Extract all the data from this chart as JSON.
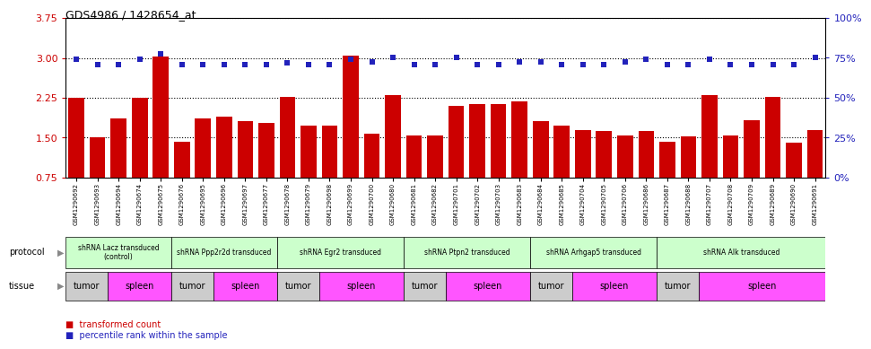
{
  "title": "GDS4986 / 1428654_at",
  "samples": [
    "GSM1290692",
    "GSM1290693",
    "GSM1290694",
    "GSM1290674",
    "GSM1290675",
    "GSM1290676",
    "GSM1290695",
    "GSM1290696",
    "GSM1290697",
    "GSM1290677",
    "GSM1290678",
    "GSM1290679",
    "GSM1290698",
    "GSM1290699",
    "GSM1290700",
    "GSM1290680",
    "GSM1290681",
    "GSM1290682",
    "GSM1290701",
    "GSM1290702",
    "GSM1290703",
    "GSM1290683",
    "GSM1290684",
    "GSM1290685",
    "GSM1290704",
    "GSM1290705",
    "GSM1290706",
    "GSM1290686",
    "GSM1290687",
    "GSM1290688",
    "GSM1290707",
    "GSM1290708",
    "GSM1290709",
    "GSM1290689",
    "GSM1290690",
    "GSM1290691"
  ],
  "bar_values": [
    2.25,
    1.5,
    1.87,
    2.25,
    3.02,
    1.43,
    1.87,
    1.9,
    1.82,
    1.78,
    2.27,
    1.72,
    1.72,
    3.04,
    1.57,
    2.3,
    1.55,
    1.55,
    2.1,
    2.13,
    2.13,
    2.18,
    1.82,
    1.72,
    1.65,
    1.62,
    1.55,
    1.62,
    1.43,
    1.52,
    2.3,
    1.55,
    1.83,
    2.26,
    1.4,
    1.65
  ],
  "blue_values": [
    2.97,
    2.87,
    2.87,
    2.97,
    3.08,
    2.87,
    2.87,
    2.87,
    2.87,
    2.87,
    2.9,
    2.87,
    2.87,
    2.97,
    2.92,
    3.01,
    2.87,
    2.87,
    3.01,
    2.87,
    2.87,
    2.92,
    2.92,
    2.87,
    2.87,
    2.87,
    2.92,
    2.97,
    2.87,
    2.87,
    2.97,
    2.87,
    2.87,
    2.87,
    2.87,
    3.01
  ],
  "ylim_left": [
    0.75,
    3.75
  ],
  "yticks_left": [
    0.75,
    1.5,
    2.25,
    3.0,
    3.75
  ],
  "yticks_right": [
    0,
    25,
    50,
    75,
    100
  ],
  "bar_color": "#cc0000",
  "blue_color": "#2222bb",
  "plot_bg": "#ffffff",
  "protocols": [
    {
      "label": "shRNA Lacz transduced\n(control)",
      "start": 0,
      "end": 5,
      "color": "#ccffcc"
    },
    {
      "label": "shRNA Ppp2r2d transduced",
      "start": 5,
      "end": 10,
      "color": "#ccffcc"
    },
    {
      "label": "shRNA Egr2 transduced",
      "start": 10,
      "end": 16,
      "color": "#ccffcc"
    },
    {
      "label": "shRNA Ptpn2 transduced",
      "start": 16,
      "end": 22,
      "color": "#ccffcc"
    },
    {
      "label": "shRNA Arhgap5 transduced",
      "start": 22,
      "end": 28,
      "color": "#ccffcc"
    },
    {
      "label": "shRNA Alk transduced",
      "start": 28,
      "end": 36,
      "color": "#ccffcc"
    }
  ],
  "tissues": [
    {
      "label": "tumor",
      "start": 0,
      "end": 2,
      "color": "#cccccc"
    },
    {
      "label": "spleen",
      "start": 2,
      "end": 5,
      "color": "#ff55ff"
    },
    {
      "label": "tumor",
      "start": 5,
      "end": 7,
      "color": "#cccccc"
    },
    {
      "label": "spleen",
      "start": 7,
      "end": 10,
      "color": "#ff55ff"
    },
    {
      "label": "tumor",
      "start": 10,
      "end": 12,
      "color": "#cccccc"
    },
    {
      "label": "spleen",
      "start": 12,
      "end": 16,
      "color": "#ff55ff"
    },
    {
      "label": "tumor",
      "start": 16,
      "end": 18,
      "color": "#cccccc"
    },
    {
      "label": "spleen",
      "start": 18,
      "end": 22,
      "color": "#ff55ff"
    },
    {
      "label": "tumor",
      "start": 22,
      "end": 24,
      "color": "#cccccc"
    },
    {
      "label": "spleen",
      "start": 24,
      "end": 28,
      "color": "#ff55ff"
    },
    {
      "label": "tumor",
      "start": 28,
      "end": 30,
      "color": "#cccccc"
    },
    {
      "label": "spleen",
      "start": 30,
      "end": 36,
      "color": "#ff55ff"
    }
  ]
}
